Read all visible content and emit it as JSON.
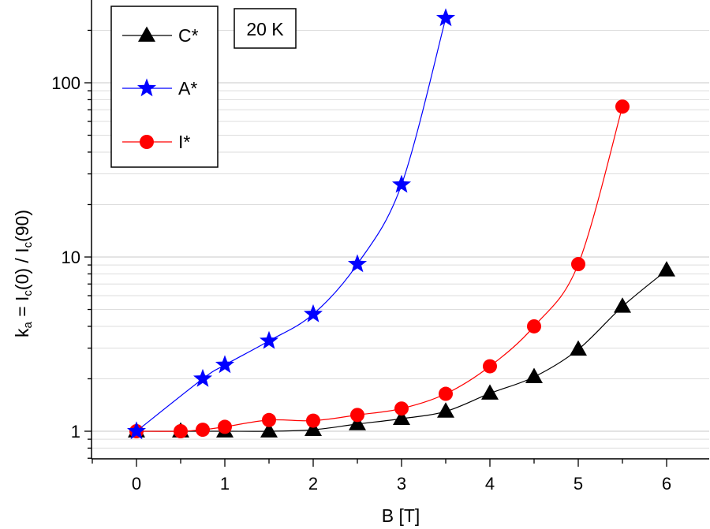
{
  "chart_data": {
    "type": "line",
    "xlabel": "B [T]",
    "ylabel": {
      "parts": [
        {
          "t": "k",
          "sub": false
        },
        {
          "t": "a",
          "sub": true
        },
        {
          "t": " = I",
          "sub": false
        },
        {
          "t": "c",
          "sub": true
        },
        {
          "t": "(0) / I",
          "sub": false
        },
        {
          "t": "c",
          "sub": true
        },
        {
          "t": "(90)",
          "sub": false
        }
      ]
    },
    "xlim": [
      -0.5,
      6.5
    ],
    "ylim": [
      0.69,
      270
    ],
    "yscale": "log",
    "xticks": [
      0,
      1,
      2,
      3,
      4,
      5,
      6
    ],
    "xtick_labels": [
      "0",
      "1",
      "2",
      "3",
      "4",
      "5",
      "6"
    ],
    "yticks": [
      1,
      10,
      100
    ],
    "ytick_labels": [
      "1",
      "10",
      "100"
    ],
    "grid": "horizontal",
    "legend_position": "top-left",
    "annotation": "20 K",
    "series": [
      {
        "name": "C*",
        "marker": "triangle",
        "color": "#000000",
        "x": [
          0,
          0.5,
          1,
          1.5,
          2,
          2.5,
          3,
          3.5,
          4,
          4.5,
          5,
          5.5,
          6
        ],
        "y": [
          1.0,
          1.0,
          1.0,
          1.0,
          1.02,
          1.1,
          1.18,
          1.3,
          1.65,
          2.05,
          2.95,
          5.2,
          8.4
        ]
      },
      {
        "name": "A*",
        "marker": "star",
        "color": "#0000ff",
        "x": [
          0,
          0.75,
          1,
          1.5,
          2,
          2.5,
          3,
          3.5
        ],
        "y": [
          1.0,
          2.0,
          2.4,
          3.3,
          4.7,
          9.1,
          26,
          235
        ]
      },
      {
        "name": "I*",
        "marker": "circle",
        "color": "#ff0000",
        "x": [
          0,
          0.5,
          0.75,
          1,
          1.5,
          2,
          2.5,
          3,
          3.5,
          4,
          4.5,
          5,
          5.5
        ],
        "y": [
          1.0,
          1.0,
          1.02,
          1.06,
          1.16,
          1.15,
          1.24,
          1.35,
          1.64,
          2.36,
          4.0,
          9.1,
          73
        ]
      }
    ]
  }
}
